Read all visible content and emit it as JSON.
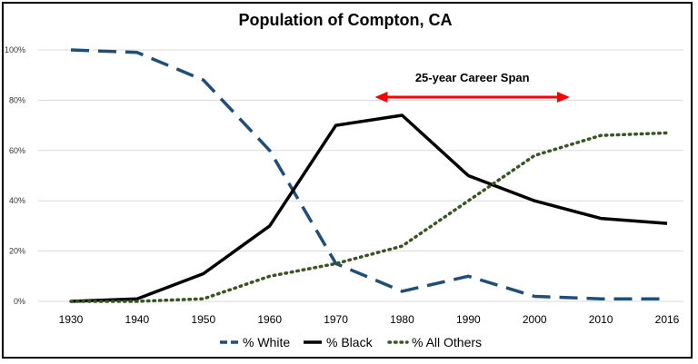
{
  "chart_data": {
    "type": "line",
    "title": "Population of Compton, CA",
    "xlabel": "",
    "ylabel": "",
    "categories": [
      "1930",
      "1940",
      "1950",
      "1960",
      "1970",
      "1980",
      "1990",
      "2000",
      "2010",
      "2016"
    ],
    "ylim": [
      0,
      1
    ],
    "y_ticks": [
      "0%",
      "20%",
      "40%",
      "60%",
      "80%",
      "100%"
    ],
    "grid": true,
    "legend_position": "bottom",
    "series": [
      {
        "name": "% White",
        "color": "#1f4e79",
        "style": "dashed",
        "values": [
          1.0,
          0.99,
          0.88,
          0.6,
          0.15,
          0.04,
          0.1,
          0.02,
          0.01,
          0.01
        ]
      },
      {
        "name": "% Black",
        "color": "#000000",
        "style": "solid",
        "values": [
          0.0,
          0.01,
          0.11,
          0.3,
          0.7,
          0.74,
          0.5,
          0.4,
          0.33,
          0.31
        ]
      },
      {
        "name": "% All Others",
        "color": "#375623",
        "style": "dotted",
        "values": [
          0.0,
          0.0,
          0.01,
          0.1,
          0.15,
          0.22,
          0.4,
          0.58,
          0.66,
          0.67
        ]
      }
    ],
    "annotations": [
      {
        "text": "25-year Career Span",
        "arrow_from": "1980",
        "arrow_to": "2006",
        "arrow_color": "#ff0000"
      }
    ]
  }
}
